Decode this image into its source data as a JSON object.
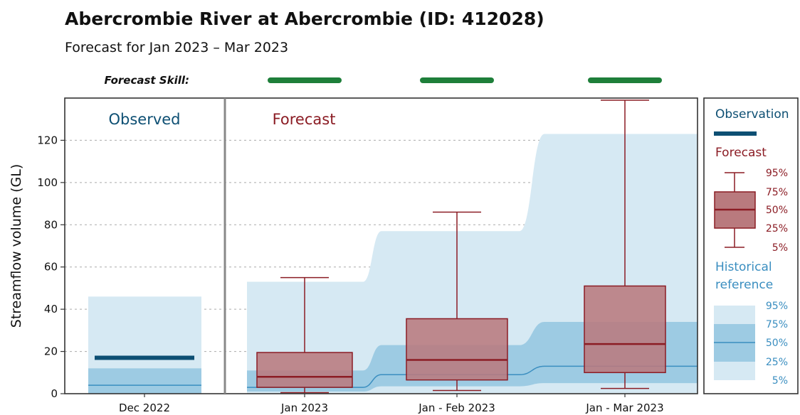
{
  "colors": {
    "observation": "#0d4f73",
    "forecast_line": "#8b1c24",
    "forecast_fill": "#b97a7e",
    "hist_outer": "#d6e9f3",
    "hist_inner": "#9dcbe3",
    "hist_median": "#3a8ec0",
    "skill_good": "#1e7f3a",
    "panel_border": "#333333",
    "divider": "#888888",
    "grid": "#aaaaaa"
  },
  "chart_data": {
    "type": "box",
    "title": "Abercrombie River at Abercrombie (ID: 412028)",
    "subtitle": "Forecast for Jan 2023 – Mar 2023",
    "ylabel": "Streamflow volume (GL)",
    "ylim": [
      0,
      140
    ],
    "yticks": [
      0,
      20,
      40,
      60,
      80,
      100,
      120
    ],
    "grid": "horizontal-dashed",
    "skill_label": "Forecast Skill:",
    "panels": {
      "observed": "Observed",
      "forecast": "Forecast"
    },
    "categories": [
      "Dec 2022",
      "Jan 2023",
      "Jan - Feb 2023",
      "Jan - Mar 2023"
    ],
    "observed": {
      "category": "Dec 2022",
      "value": 17,
      "historical": {
        "p5": 0,
        "p25": 0,
        "p50": 4,
        "p75": 12,
        "p95": 46
      }
    },
    "forecast": [
      {
        "category": "Jan 2023",
        "p5": 0.5,
        "p25": 3,
        "p50": 8,
        "p75": 19.5,
        "p95": 55,
        "skill": "good"
      },
      {
        "category": "Jan - Feb 2023",
        "p5": 1.5,
        "p25": 6.5,
        "p50": 16,
        "p75": 35.5,
        "p95": 86,
        "skill": "good"
      },
      {
        "category": "Jan - Mar 2023",
        "p5": 2.5,
        "p25": 10,
        "p50": 23.5,
        "p75": 51,
        "p95": 139,
        "skill": "good"
      }
    ],
    "historical_forecast": [
      {
        "category": "Jan 2023",
        "p25": 1,
        "p50": 3,
        "p75": 11,
        "p95": 53
      },
      {
        "category": "Jan - Feb 2023",
        "p25": 3.5,
        "p50": 9,
        "p75": 23,
        "p95": 77
      },
      {
        "category": "Jan - Mar 2023",
        "p25": 5,
        "p50": 13,
        "p75": 34,
        "p95": 123
      }
    ],
    "legend": {
      "position": "right",
      "observation": "Observation",
      "forecast": "Forecast",
      "historical": "Historical\nreference",
      "historical_line1": "Historical",
      "historical_line2": "reference",
      "forecast_pcts": [
        "95%",
        "75%",
        "50%",
        "25%",
        "5%"
      ],
      "historical_pcts": [
        "95%",
        "75%",
        "50%",
        "25%",
        "5%"
      ]
    }
  }
}
